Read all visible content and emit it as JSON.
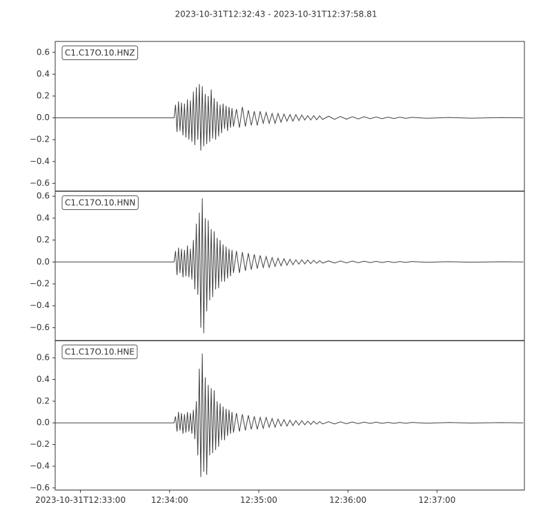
{
  "title": "2023-10-31T12:32:43  -  2023-10-31T12:37:58.81",
  "chart_data": [
    {
      "type": "line",
      "xlim": [
        0,
        315.81
      ],
      "ylim": [
        -0.67,
        0.7
      ],
      "yticks": [
        {
          "value": -0.6,
          "label": "−0.6"
        },
        {
          "value": -0.4,
          "label": "−0.4"
        },
        {
          "value": -0.2,
          "label": "−0.2"
        },
        {
          "value": 0,
          "label": "0.0"
        },
        0.2,
        0.4,
        0.6
      ],
      "x": [
        0,
        80,
        81,
        82,
        83,
        84,
        85,
        86,
        87,
        88,
        89,
        90,
        91,
        92,
        93,
        94,
        95,
        96,
        97,
        98,
        99,
        100,
        101,
        102,
        103,
        104,
        105,
        106,
        107,
        108,
        109,
        110,
        111,
        112,
        113,
        114,
        115,
        116,
        117,
        118,
        119,
        120,
        122,
        124,
        126,
        128,
        130,
        132,
        134,
        136,
        138,
        140,
        142,
        144,
        146,
        148,
        150,
        152,
        154,
        156,
        158,
        160,
        162,
        164,
        166,
        168,
        170,
        172,
        174,
        176,
        178,
        180,
        184,
        188,
        192,
        196,
        200,
        204,
        208,
        212,
        216,
        220,
        224,
        228,
        232,
        236,
        240,
        250,
        265,
        280,
        300,
        315
      ],
      "series": [
        {
          "name": "C1.C17O.10.HNZ",
          "color": "#404040",
          "values": [
            0,
            0,
            0.12,
            -0.13,
            0.15,
            -0.12,
            0.14,
            -0.16,
            0.13,
            -0.18,
            0.17,
            -0.2,
            0.16,
            -0.22,
            0.24,
            -0.25,
            0.28,
            -0.2,
            0.31,
            -0.3,
            0.29,
            -0.26,
            0.22,
            -0.24,
            0.2,
            -0.22,
            0.26,
            -0.19,
            0.18,
            -0.2,
            0.15,
            -0.17,
            0.12,
            -0.14,
            0.13,
            -0.1,
            0.11,
            -0.12,
            0.1,
            -0.09,
            0.09,
            -0.08,
            0.08,
            -0.09,
            0.1,
            -0.08,
            0.07,
            -0.07,
            0.06,
            -0.07,
            0.06,
            -0.05,
            0.05,
            -0.05,
            0.04,
            -0.05,
            0.04,
            -0.04,
            0.035,
            -0.03,
            0.03,
            -0.03,
            0.03,
            -0.025,
            0.025,
            -0.02,
            0.02,
            -0.02,
            0.02,
            -0.018,
            0.018,
            -0.015,
            0.015,
            -0.014,
            0.012,
            -0.012,
            0.01,
            -0.01,
            0.01,
            -0.008,
            0.008,
            -0.008,
            0.006,
            -0.006,
            0.006,
            -0.005,
            0.005,
            -0.004,
            0.003,
            -0.003,
            0.002,
            0
          ]
        }
      ]
    },
    {
      "type": "line",
      "xlim": [
        0,
        315.81
      ],
      "ylim": [
        -0.72,
        0.645
      ],
      "yticks": [
        {
          "value": -0.6,
          "label": "−0.6"
        },
        {
          "value": -0.4,
          "label": "−0.4"
        },
        {
          "value": -0.2,
          "label": "−0.2"
        },
        {
          "value": 0,
          "label": "0.0"
        },
        0.2,
        0.4,
        0.6
      ],
      "x": [
        0,
        80,
        81,
        82,
        83,
        84,
        85,
        86,
        87,
        88,
        89,
        90,
        91,
        92,
        93,
        94,
        95,
        96,
        97,
        98,
        99,
        100,
        101,
        102,
        103,
        104,
        105,
        106,
        107,
        108,
        109,
        110,
        111,
        112,
        113,
        114,
        115,
        116,
        117,
        118,
        119,
        120,
        122,
        124,
        126,
        128,
        130,
        132,
        134,
        136,
        138,
        140,
        142,
        144,
        146,
        148,
        150,
        152,
        154,
        156,
        158,
        160,
        162,
        164,
        166,
        168,
        170,
        172,
        174,
        176,
        178,
        180,
        184,
        188,
        192,
        196,
        200,
        204,
        208,
        212,
        216,
        220,
        224,
        228,
        232,
        236,
        240,
        250,
        265,
        280,
        300,
        315
      ],
      "series": [
        {
          "name": "C1.C17O.10.HNN",
          "color": "#404040",
          "values": [
            0,
            0,
            0.1,
            -0.12,
            0.13,
            -0.1,
            0.12,
            -0.14,
            0.11,
            -0.13,
            0.15,
            -0.14,
            0.12,
            -0.16,
            0.2,
            -0.25,
            0.35,
            -0.3,
            0.45,
            -0.6,
            0.58,
            -0.65,
            0.4,
            -0.45,
            0.38,
            -0.35,
            0.3,
            -0.32,
            0.28,
            -0.25,
            0.22,
            -0.24,
            0.2,
            -0.18,
            0.16,
            -0.18,
            0.14,
            -0.15,
            0.12,
            -0.13,
            0.11,
            -0.1,
            0.1,
            -0.1,
            0.09,
            -0.08,
            0.08,
            -0.07,
            0.07,
            -0.06,
            0.06,
            -0.05,
            0.05,
            -0.05,
            0.04,
            -0.04,
            0.035,
            -0.035,
            0.03,
            -0.03,
            0.025,
            -0.025,
            0.02,
            -0.02,
            0.02,
            -0.018,
            0.018,
            -0.015,
            0.015,
            -0.012,
            0.012,
            -0.01,
            0.01,
            -0.01,
            0.009,
            -0.008,
            0.008,
            -0.007,
            0.007,
            -0.006,
            0.006,
            -0.005,
            0.005,
            -0.005,
            0.004,
            -0.004,
            0.004,
            -0.003,
            0.003,
            -0.002,
            0.002,
            0
          ]
        }
      ]
    },
    {
      "type": "line",
      "xlim": [
        0,
        315.81
      ],
      "ylim": [
        -0.62,
        0.76
      ],
      "yticks": [
        {
          "value": -0.6,
          "label": "−0.6"
        },
        {
          "value": -0.4,
          "label": "−0.4"
        },
        {
          "value": -0.2,
          "label": "−0.2"
        },
        {
          "value": 0,
          "label": "0.0"
        },
        0.2,
        0.4,
        0.6
      ],
      "xticks": [
        {
          "value": 17,
          "label": "2023-10-31T12:33:00"
        },
        {
          "value": 77,
          "label": "12:34:00"
        },
        {
          "value": 137,
          "label": "12:35:00"
        },
        {
          "value": 197,
          "label": "12:36:00"
        },
        {
          "value": 257,
          "label": "12:37:00"
        }
      ],
      "x": [
        0,
        80,
        81,
        82,
        83,
        84,
        85,
        86,
        87,
        88,
        89,
        90,
        91,
        92,
        93,
        94,
        95,
        96,
        97,
        98,
        99,
        100,
        101,
        102,
        103,
        104,
        105,
        106,
        107,
        108,
        109,
        110,
        111,
        112,
        113,
        114,
        115,
        116,
        117,
        118,
        119,
        120,
        122,
        124,
        126,
        128,
        130,
        132,
        134,
        136,
        138,
        140,
        142,
        144,
        146,
        148,
        150,
        152,
        154,
        156,
        158,
        160,
        162,
        164,
        166,
        168,
        170,
        172,
        174,
        176,
        178,
        180,
        184,
        188,
        192,
        196,
        200,
        204,
        208,
        212,
        216,
        220,
        224,
        228,
        232,
        236,
        240,
        250,
        265,
        280,
        300,
        315
      ],
      "series": [
        {
          "name": "C1.C17O.10.HNE",
          "color": "#404040",
          "values": [
            0,
            0,
            0.06,
            -0.08,
            0.1,
            -0.07,
            0.09,
            -0.1,
            0.08,
            -0.09,
            0.1,
            -0.08,
            0.09,
            -0.1,
            0.12,
            -0.15,
            0.2,
            -0.3,
            0.5,
            -0.5,
            0.64,
            -0.45,
            0.42,
            -0.48,
            0.35,
            -0.3,
            0.32,
            -0.28,
            0.3,
            -0.25,
            0.2,
            -0.22,
            0.18,
            -0.16,
            0.15,
            -0.16,
            0.13,
            -0.12,
            0.12,
            -0.1,
            0.1,
            -0.09,
            0.09,
            -0.08,
            0.08,
            -0.07,
            0.07,
            -0.06,
            0.06,
            -0.06,
            0.05,
            -0.05,
            0.05,
            -0.04,
            0.04,
            -0.04,
            0.035,
            -0.03,
            0.03,
            -0.03,
            0.025,
            -0.025,
            0.02,
            -0.02,
            0.02,
            -0.018,
            0.016,
            -0.015,
            0.015,
            -0.012,
            0.012,
            -0.01,
            0.01,
            -0.01,
            0.009,
            -0.008,
            0.008,
            -0.007,
            0.007,
            -0.006,
            0.006,
            -0.005,
            0.005,
            -0.005,
            0.004,
            -0.004,
            0.004,
            -0.003,
            0.003,
            -0.002,
            0.002,
            0
          ]
        }
      ]
    }
  ]
}
